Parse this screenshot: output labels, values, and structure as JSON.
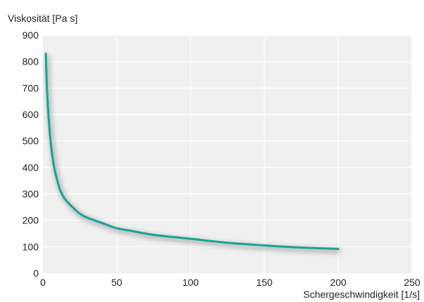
{
  "chart_data": {
    "type": "line",
    "xlabel": "Schergeschwindigkeit [1/s]",
    "ylabel": "Viskosität [Pa s]",
    "xlim": [
      0,
      250
    ],
    "ylim": [
      0,
      900
    ],
    "x_ticks": [
      0,
      50,
      100,
      150,
      200,
      250
    ],
    "y_ticks": [
      0,
      100,
      200,
      300,
      400,
      500,
      600,
      700,
      800,
      900
    ],
    "grid": true,
    "legend": "none",
    "series": [
      {
        "x": [
          2,
          2.5,
          3,
          3.5,
          4,
          5,
          6,
          7,
          8,
          10,
          12,
          15,
          20,
          25,
          30,
          40,
          50,
          60,
          75,
          100,
          125,
          150,
          175,
          200
        ],
        "values": [
          830,
          730,
          670,
          620,
          580,
          510,
          460,
          420,
          390,
          345,
          310,
          280,
          250,
          225,
          210,
          190,
          170,
          160,
          145,
          130,
          115,
          105,
          97,
          92
        ]
      }
    ],
    "colors": {
      "plot_background": "#f0f0f0",
      "grid": "#ffffff",
      "line": "#13a392",
      "shadow": "#9a9a9a"
    }
  }
}
